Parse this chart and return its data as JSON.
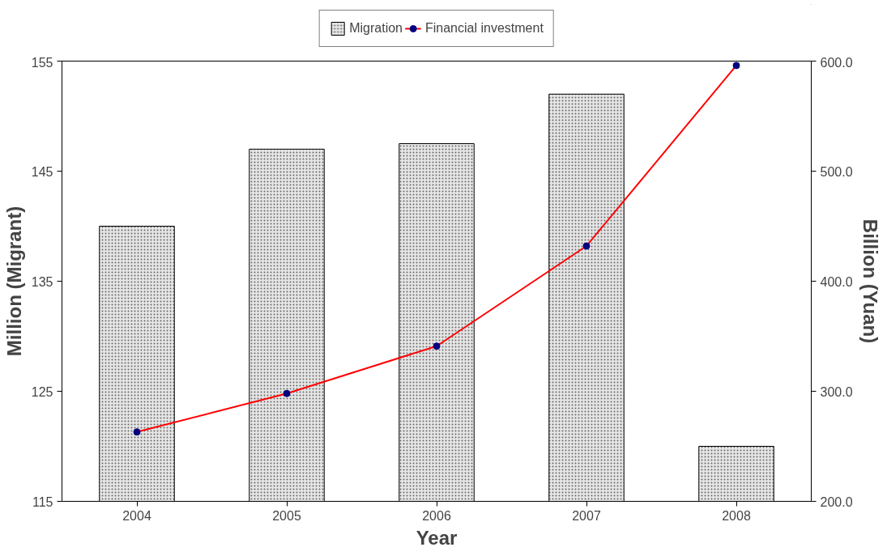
{
  "chart_data": {
    "type": "bar",
    "xlabel": "Year",
    "ylabel": "Million (Migrant)",
    "y2label": "Billion (Yuan)",
    "categories": [
      "2004",
      "2005",
      "2006",
      "2007",
      "2008"
    ],
    "series": [
      {
        "name": "Migration",
        "color": "#e6e6e6",
        "values": [
          140,
          147,
          147.5,
          152,
          120
        ]
      },
      {
        "name": "Financial investment",
        "type": "line",
        "axis": "y2",
        "color": "#ff0000",
        "marker": "circle",
        "values": [
          263,
          298,
          341,
          432,
          596
        ]
      }
    ],
    "ylim": [
      115,
      155
    ],
    "yticks": [
      115,
      125,
      135,
      145,
      155
    ],
    "y2lim": [
      200,
      600
    ],
    "y2ticks": [
      {
        "value": 200,
        "label": "200.0"
      },
      {
        "value": 300,
        "label": "300.0"
      },
      {
        "value": 400,
        "label": "400.0"
      },
      {
        "value": 500,
        "label": "500.0"
      },
      {
        "value": 600,
        "label": "600.0"
      }
    ],
    "grid": false,
    "legend": "top"
  }
}
